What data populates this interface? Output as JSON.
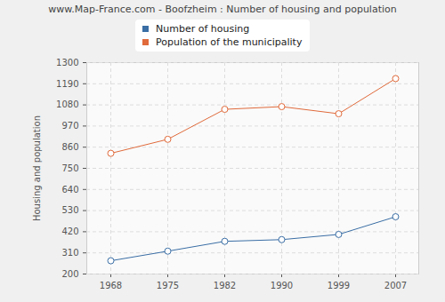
{
  "chart_data": {
    "type": "line",
    "title": "www.Map-France.com - Boofzheim : Number of housing and population",
    "y_label": "Housing and population",
    "categories": [
      "1968",
      "1975",
      "1982",
      "1990",
      "1999",
      "2007"
    ],
    "series": [
      {
        "name": "Number of housing",
        "color": "#3a6ea5",
        "values": [
          269,
          319,
          370,
          379,
          406,
          498
        ]
      },
      {
        "name": "Population of the municipality",
        "color": "#e06a3b",
        "values": [
          828,
          901,
          1057,
          1071,
          1034,
          1217
        ]
      }
    ],
    "ylim": [
      200,
      1300
    ],
    "yticks": [
      200,
      310,
      420,
      530,
      640,
      750,
      860,
      970,
      1080,
      1190,
      1300
    ],
    "grid": true,
    "marker": "circle",
    "line_style": "solid"
  }
}
